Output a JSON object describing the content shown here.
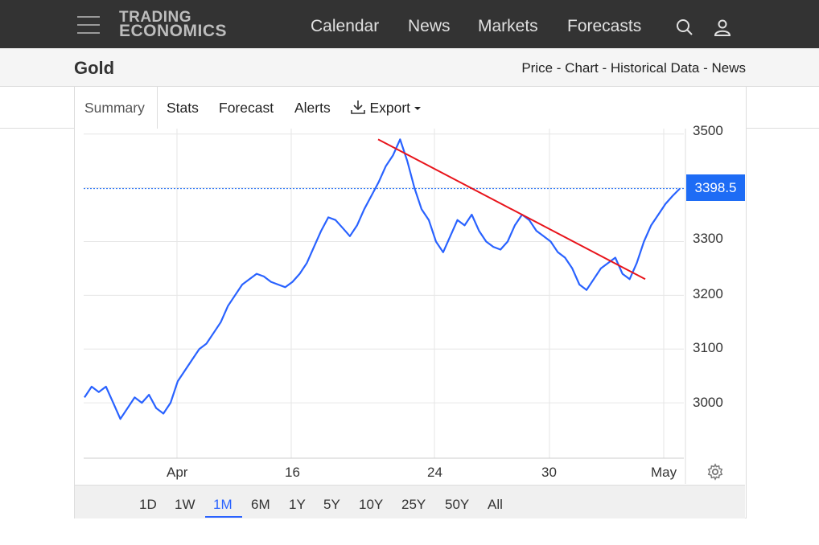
{
  "header": {
    "logo_line1": "TRADING",
    "logo_line2": "ECONOMICS",
    "nav": [
      "Calendar",
      "News",
      "Markets",
      "Forecasts"
    ],
    "icons": [
      "menu-icon",
      "search-icon",
      "user-icon"
    ]
  },
  "subheader": {
    "title": "Gold",
    "links": "Price - Chart - Historical Data - News"
  },
  "tabs": {
    "summary": "Summary",
    "stats": "Stats",
    "forecast": "Forecast",
    "alerts": "Alerts",
    "export": "Export"
  },
  "price_label": "3398.5",
  "ranges": [
    "1D",
    "1W",
    "1M",
    "6M",
    "1Y",
    "5Y",
    "10Y",
    "25Y",
    "50Y",
    "All"
  ],
  "active_range": "1M",
  "colors": {
    "line": "#2962ff",
    "trend": "#e8141b",
    "badge": "#1e6cf5"
  },
  "chart_data": {
    "type": "line",
    "title": "",
    "xlabel": "",
    "ylabel": "",
    "x_ticks": [
      "Apr",
      "16",
      "24",
      "30",
      "May"
    ],
    "y_ticks": [
      "3500",
      "3400",
      "3300",
      "3200",
      "3100",
      "3000"
    ],
    "ylim": [
      2900,
      3510
    ],
    "series": [
      {
        "values": [
          3010,
          3030,
          3020,
          3030,
          3000,
          2970,
          2990,
          3010,
          3000,
          3015,
          2990,
          2980,
          3000,
          3040,
          3060,
          3080,
          3100,
          3110,
          3130,
          3150,
          3180,
          3200,
          3220,
          3230,
          3240,
          3235,
          3225,
          3220,
          3215,
          3225,
          3240,
          3260,
          3290,
          3320,
          3345,
          3340,
          3325,
          3310,
          3330,
          3360,
          3385,
          3410,
          3440,
          3460,
          3490,
          3450,
          3400,
          3360,
          3340,
          3300,
          3280,
          3310,
          3340,
          3330,
          3350,
          3320,
          3300,
          3290,
          3285,
          3300,
          3330,
          3350,
          3340,
          3320,
          3310,
          3300,
          3280,
          3270,
          3250,
          3220,
          3210,
          3230,
          3250,
          3260,
          3270,
          3240,
          3230,
          3260,
          3300,
          3330,
          3350,
          3370,
          3385,
          3398.5
        ]
      },
      {
        "name": "",
        "values": [
          3490,
          3230
        ]
      }
    ],
    "grid": true,
    "legend": "none"
  }
}
